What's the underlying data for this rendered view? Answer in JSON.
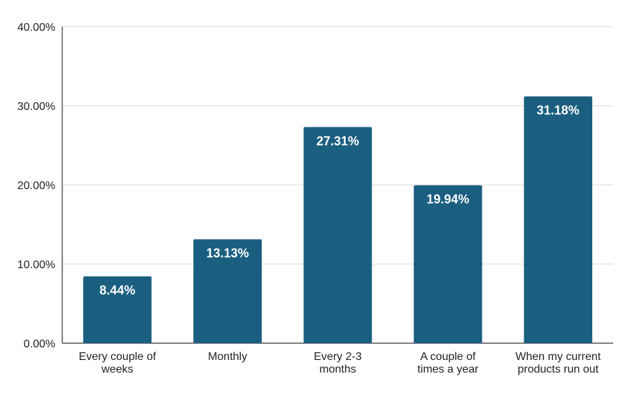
{
  "chart_data": {
    "type": "bar",
    "title": "",
    "xlabel": "",
    "ylabel": "",
    "categories": [
      [
        "Every couple of",
        "weeks"
      ],
      [
        "Monthly"
      ],
      [
        "Every 2-3",
        "months"
      ],
      [
        "A couple of",
        "times a year"
      ],
      [
        "When my current",
        "products run out"
      ]
    ],
    "values": [
      8.44,
      13.13,
      27.31,
      19.94,
      31.18
    ],
    "data_labels": [
      "8.44%",
      "13.13%",
      "27.31%",
      "19.94%",
      "31.18%"
    ],
    "ylim": [
      0,
      40
    ],
    "yticks": [
      0,
      10,
      20,
      30,
      40
    ],
    "ytick_labels": [
      "0.00%",
      "10.00%",
      "20.00%",
      "30.00%",
      "40.00%"
    ],
    "grid": true,
    "legend": "none",
    "bar_color": "#1a5e80"
  }
}
